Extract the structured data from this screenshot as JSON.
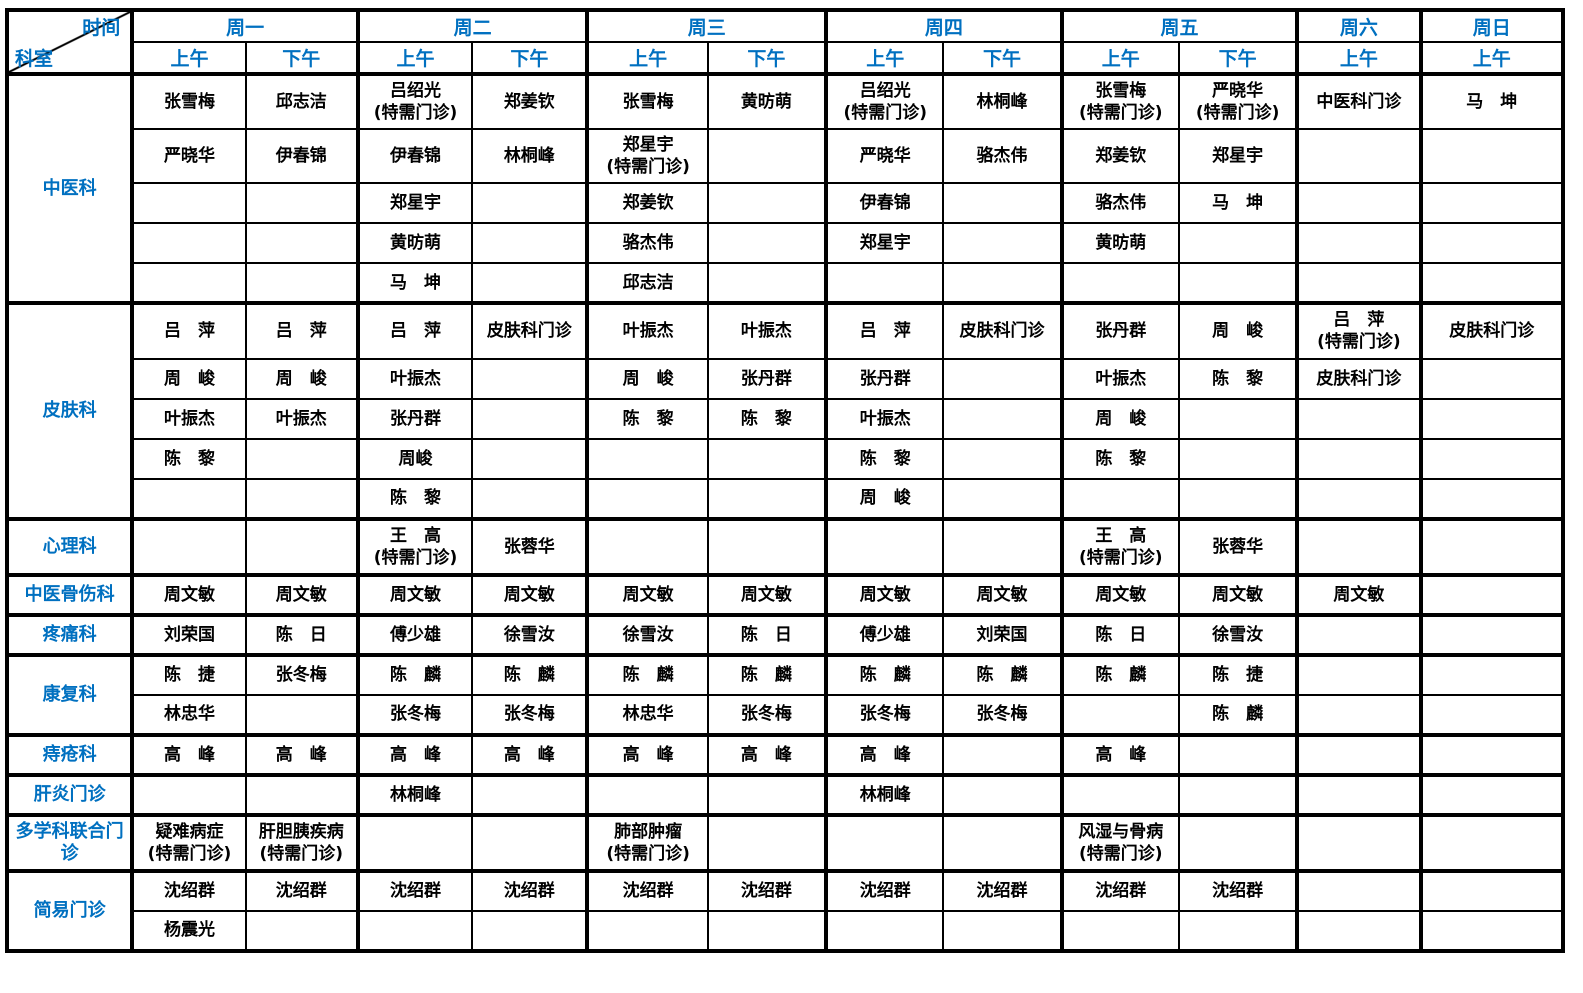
{
  "colors": {
    "accent": "#0070C0",
    "grid_line": "#000000",
    "text": "#000000",
    "background": "#ffffff"
  },
  "header": {
    "corner": {
      "top": "时间",
      "bottom": "科室"
    },
    "days": [
      {
        "label": "周一",
        "slots": [
          "上午",
          "下午"
        ]
      },
      {
        "label": "周二",
        "slots": [
          "上午",
          "下午"
        ]
      },
      {
        "label": "周三",
        "slots": [
          "上午",
          "下午"
        ]
      },
      {
        "label": "周四",
        "slots": [
          "上午",
          "下午"
        ]
      },
      {
        "label": "周五",
        "slots": [
          "上午",
          "下午"
        ]
      },
      {
        "label": "周六",
        "slots": [
          "上午"
        ]
      },
      {
        "label": "周日",
        "slots": [
          "上午"
        ]
      }
    ]
  },
  "sections": [
    {
      "department": "中医科",
      "rows": [
        {
          "cells": [
            "张雪梅",
            "邱志洁",
            "吕绍光\n(特需门诊)",
            "郑姜钦",
            "张雪梅",
            "黄昉萌",
            "吕绍光\n(特需门诊)",
            "林桐峰",
            "张雪梅\n(特需门诊)",
            "严晓华\n(特需门诊)",
            "中医科门诊",
            "马　坤"
          ]
        },
        {
          "cells": [
            "严晓华",
            "伊春锦",
            "伊春锦",
            "林桐峰",
            "郑星宇\n(特需门诊)",
            "",
            "严晓华",
            "骆杰伟",
            "郑姜钦",
            "郑星宇",
            "",
            ""
          ]
        },
        {
          "cells": [
            "",
            "",
            "郑星宇",
            "",
            "郑姜钦",
            "",
            "伊春锦",
            "",
            "骆杰伟",
            "马　坤",
            "",
            ""
          ]
        },
        {
          "cells": [
            "",
            "",
            "黄昉萌",
            "",
            "骆杰伟",
            "",
            "郑星宇",
            "",
            "黄昉萌",
            "",
            "",
            ""
          ]
        },
        {
          "cells": [
            "",
            "",
            "马　坤",
            "",
            "邱志洁",
            "",
            "",
            "",
            "",
            "",
            "",
            ""
          ]
        }
      ]
    },
    {
      "department": "皮肤科",
      "rows": [
        {
          "cells": [
            "吕　萍",
            "吕　萍",
            "吕　萍",
            "皮肤科门诊",
            "叶振杰",
            "叶振杰",
            "吕　萍",
            "皮肤科门诊",
            "张丹群",
            "周　峻",
            "吕　萍\n(特需门诊)",
            "皮肤科门诊"
          ]
        },
        {
          "cells": [
            "周　峻",
            "周　峻",
            "叶振杰",
            "",
            "周　峻",
            "张丹群",
            "张丹群",
            "",
            "叶振杰",
            "陈　黎",
            "皮肤科门诊",
            ""
          ]
        },
        {
          "cells": [
            "叶振杰",
            "叶振杰",
            "张丹群",
            "",
            "陈　黎",
            "陈　黎",
            "叶振杰",
            "",
            "周　峻",
            "",
            "",
            ""
          ]
        },
        {
          "cells": [
            "陈　黎",
            "",
            "周峻",
            "",
            "",
            "",
            "陈　黎",
            "",
            "陈　黎",
            "",
            "",
            ""
          ]
        },
        {
          "cells": [
            "",
            "",
            "陈　黎",
            "",
            "",
            "",
            "周　峻",
            "",
            "",
            "",
            "",
            ""
          ]
        }
      ]
    },
    {
      "department": "心理科",
      "rows": [
        {
          "cells": [
            "",
            "",
            "王　高\n(特需门诊)",
            "张蓉华",
            "",
            "",
            "",
            "",
            "王　高\n(特需门诊)",
            "张蓉华",
            "",
            ""
          ]
        }
      ]
    },
    {
      "department": "中医骨伤科",
      "rows": [
        {
          "cells": [
            "周文敏",
            "周文敏",
            "周文敏",
            "周文敏",
            "周文敏",
            "周文敏",
            "周文敏",
            "周文敏",
            "周文敏",
            "周文敏",
            "周文敏",
            ""
          ]
        }
      ]
    },
    {
      "department": "疼痛科",
      "rows": [
        {
          "cells": [
            "刘荣国",
            "陈　日",
            "傅少雄",
            "徐雪汝",
            "徐雪汝",
            "陈　日",
            "傅少雄",
            "刘荣国",
            "陈　日",
            "徐雪汝",
            "",
            ""
          ]
        }
      ]
    },
    {
      "department": "康复科",
      "rows": [
        {
          "cells": [
            "陈　捷",
            "张冬梅",
            "陈　麟",
            "陈　麟",
            "陈　麟",
            "陈　麟",
            "陈　麟",
            "陈　麟",
            "陈　麟",
            "陈　捷",
            "",
            ""
          ]
        },
        {
          "cells": [
            "林忠华",
            "",
            "张冬梅",
            "张冬梅",
            "林忠华",
            "张冬梅",
            "张冬梅",
            "张冬梅",
            "",
            "陈　麟",
            "",
            ""
          ]
        }
      ]
    },
    {
      "department": "痔疮科",
      "rows": [
        {
          "cells": [
            "高　峰",
            "高　峰",
            "高　峰",
            "高　峰",
            "高　峰",
            "高　峰",
            "高　峰",
            "",
            "高　峰",
            "",
            "",
            ""
          ]
        }
      ]
    },
    {
      "department": "肝炎门诊",
      "rows": [
        {
          "cells": [
            "",
            "",
            "林桐峰",
            "",
            "",
            "",
            "林桐峰",
            "",
            "",
            "",
            "",
            ""
          ]
        }
      ]
    },
    {
      "department": "多学科联合门诊",
      "rows": [
        {
          "cells": [
            "疑难病症\n(特需门诊)",
            "肝胆胰疾病\n(特需门诊)",
            "",
            "",
            "肺部肿瘤\n(特需门诊)",
            "",
            "",
            "",
            "风湿与骨病\n(特需门诊)",
            "",
            "",
            ""
          ]
        }
      ]
    },
    {
      "department": "简易门诊",
      "rows": [
        {
          "cells": [
            "沈绍群",
            "沈绍群",
            "沈绍群",
            "沈绍群",
            "沈绍群",
            "沈绍群",
            "沈绍群",
            "沈绍群",
            "沈绍群",
            "沈绍群",
            "",
            ""
          ]
        },
        {
          "cells": [
            "杨震光",
            "",
            "",
            "",
            "",
            "",
            "",
            "",
            "",
            "",
            "",
            ""
          ]
        }
      ]
    }
  ]
}
